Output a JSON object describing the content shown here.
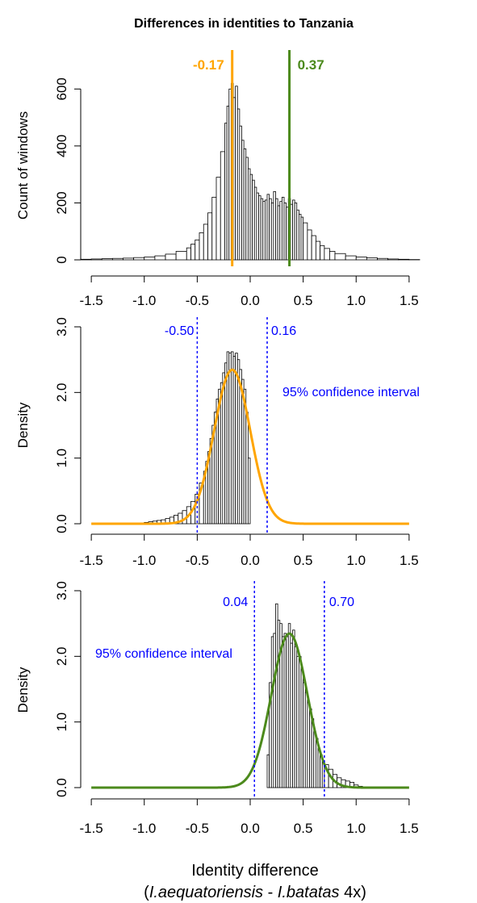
{
  "figure": {
    "title": "Differences in identities to Tanzania",
    "xlabel_line1": "Identity difference",
    "xlabel_prefix": "(",
    "xlabel_species1": "I.aequatoriensis",
    "xlabel_sep": " - ",
    "xlabel_species2": "I.batatas",
    "xlabel_suffix": " 4x)"
  },
  "chart_data": [
    {
      "type": "bar",
      "panel": "top",
      "ylabel": "Count of windows",
      "xlim": [
        -1.6,
        1.6
      ],
      "ylim": [
        0,
        700
      ],
      "x_ticks": [
        "-1.5",
        "-1.0",
        "-0.5",
        "0.0",
        "0.5",
        "1.0",
        "1.5"
      ],
      "y_ticks": [
        "0",
        "200",
        "400",
        "600"
      ],
      "grid": false,
      "bin_width": 0.02,
      "histogram_values": "see series",
      "series": [
        {
          "name": "windows",
          "bin_starts": [
            -1.6,
            -1.5,
            -1.4,
            -1.3,
            -1.2,
            -1.1,
            -1.0,
            -0.9,
            -0.8,
            -0.7,
            -0.6,
            -0.56,
            -0.52,
            -0.48,
            -0.44,
            -0.4,
            -0.36,
            -0.32,
            -0.28,
            -0.24,
            -0.22,
            -0.2,
            -0.18,
            -0.16,
            -0.14,
            -0.12,
            -0.1,
            -0.08,
            -0.06,
            -0.04,
            -0.02,
            0.0,
            0.02,
            0.04,
            0.06,
            0.08,
            0.1,
            0.12,
            0.14,
            0.16,
            0.18,
            0.2,
            0.22,
            0.24,
            0.26,
            0.28,
            0.3,
            0.32,
            0.34,
            0.36,
            0.38,
            0.4,
            0.42,
            0.44,
            0.46,
            0.48,
            0.5,
            0.54,
            0.58,
            0.62,
            0.66,
            0.7,
            0.75,
            0.8,
            0.9,
            1.0,
            1.1,
            1.2,
            1.3,
            1.4,
            1.5
          ],
          "counts": [
            2,
            3,
            4,
            5,
            6,
            8,
            10,
            14,
            20,
            30,
            42,
            55,
            70,
            95,
            125,
            165,
            220,
            290,
            380,
            480,
            540,
            600,
            620,
            570,
            610,
            530,
            470,
            420,
            390,
            360,
            320,
            300,
            280,
            255,
            235,
            225,
            215,
            205,
            210,
            230,
            215,
            200,
            240,
            215,
            190,
            205,
            220,
            200,
            185,
            215,
            195,
            210,
            200,
            175,
            160,
            150,
            130,
            105,
            85,
            65,
            50,
            40,
            30,
            22,
            14,
            10,
            7,
            5,
            3,
            2,
            1
          ]
        }
      ],
      "annotations": [
        {
          "label": "-0.17",
          "x": -0.17,
          "color": "#FFA500"
        },
        {
          "label": "0.37",
          "x": 0.37,
          "color": "#4C8A1C"
        }
      ]
    },
    {
      "type": "bar",
      "panel": "middle",
      "ylabel": "Density",
      "xlim": [
        -1.6,
        1.6
      ],
      "ylim": [
        0,
        3.0
      ],
      "x_ticks": [
        "-1.5",
        "-1.0",
        "-0.5",
        "0.0",
        "0.5",
        "1.0",
        "1.5"
      ],
      "y_ticks": [
        "0.0",
        "1.0",
        "2.0",
        "3.0"
      ],
      "grid": false,
      "series": [
        {
          "name": "density",
          "bin_starts": [
            -1.0,
            -0.96,
            -0.92,
            -0.88,
            -0.84,
            -0.8,
            -0.76,
            -0.72,
            -0.68,
            -0.64,
            -0.6,
            -0.56,
            -0.52,
            -0.48,
            -0.44,
            -0.42,
            -0.4,
            -0.38,
            -0.36,
            -0.34,
            -0.32,
            -0.3,
            -0.28,
            -0.26,
            -0.24,
            -0.22,
            -0.2,
            -0.18,
            -0.16,
            -0.14,
            -0.12,
            -0.1,
            -0.08,
            -0.06,
            -0.04,
            -0.02
          ],
          "values": [
            0.02,
            0.03,
            0.04,
            0.05,
            0.06,
            0.08,
            0.1,
            0.13,
            0.16,
            0.2,
            0.26,
            0.34,
            0.45,
            0.62,
            0.8,
            0.95,
            1.1,
            1.3,
            1.5,
            1.7,
            1.9,
            2.05,
            2.15,
            2.3,
            2.45,
            2.62,
            2.6,
            2.62,
            2.55,
            2.6,
            2.5,
            2.35,
            2.2,
            2.05,
            1.7,
            1.0
          ]
        },
        {
          "name": "fit",
          "mean": -0.17,
          "sd": 0.17,
          "color": "#FFA500"
        }
      ],
      "annotations": [
        {
          "label": "-0.50",
          "x": -0.5,
          "color": "#0000FF"
        },
        {
          "label": "0.16",
          "x": 0.16,
          "color": "#0000FF"
        },
        {
          "label": "95% confidence interval",
          "color": "#0000FF"
        }
      ]
    },
    {
      "type": "bar",
      "panel": "bottom",
      "ylabel": "Density",
      "xlim": [
        -1.6,
        1.6
      ],
      "ylim": [
        0,
        3.0
      ],
      "x_ticks": [
        "-1.5",
        "-1.0",
        "-0.5",
        "0.0",
        "0.5",
        "1.0",
        "1.5"
      ],
      "y_ticks": [
        "0.0",
        "1.0",
        "2.0",
        "3.0"
      ],
      "grid": false,
      "series": [
        {
          "name": "density",
          "bin_starts": [
            0.16,
            0.18,
            0.2,
            0.22,
            0.24,
            0.26,
            0.28,
            0.3,
            0.32,
            0.34,
            0.36,
            0.38,
            0.4,
            0.42,
            0.44,
            0.46,
            0.48,
            0.5,
            0.52,
            0.54,
            0.56,
            0.58,
            0.6,
            0.62,
            0.64,
            0.66,
            0.68,
            0.7,
            0.74,
            0.78,
            0.82,
            0.86,
            0.9,
            0.94,
            0.98,
            1.02
          ],
          "values": [
            0.5,
            1.6,
            2.3,
            2.35,
            2.8,
            2.55,
            2.5,
            2.3,
            2.35,
            2.3,
            2.5,
            2.2,
            2.4,
            2.15,
            2.0,
            2.0,
            1.8,
            1.6,
            1.45,
            1.3,
            1.2,
            1.05,
            0.85,
            0.75,
            0.6,
            0.5,
            0.4,
            0.35,
            0.28,
            0.2,
            0.15,
            0.12,
            0.1,
            0.08,
            0.04,
            0.02
          ]
        },
        {
          "name": "fit",
          "mean": 0.37,
          "sd": 0.17,
          "color": "#4C8A1C"
        }
      ],
      "annotations": [
        {
          "label": "0.04",
          "x": 0.04,
          "color": "#0000FF"
        },
        {
          "label": "0.70",
          "x": 0.7,
          "color": "#0000FF"
        },
        {
          "label": "95% confidence interval",
          "color": "#0000FF"
        }
      ]
    }
  ],
  "colors": {
    "orange": "#FFA500",
    "green": "#4C8A1C",
    "blue": "#0000FF",
    "axis": "#000000"
  }
}
